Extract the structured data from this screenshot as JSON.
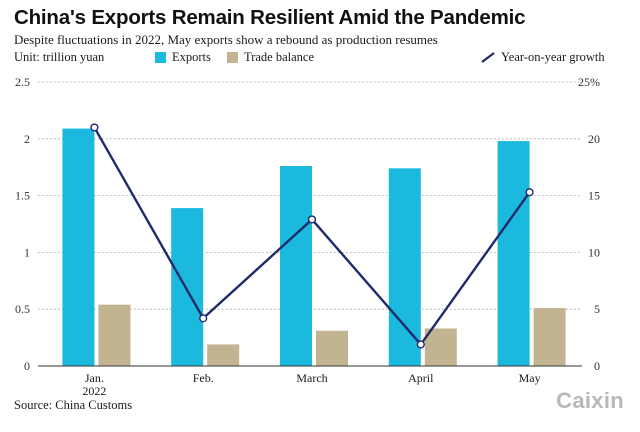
{
  "chart_data": {
    "type": "bar",
    "title": "China's Exports Remain Resilient Amid the Pandemic",
    "subtitle": "Despite fluctuations in 2022, May exports show a rebound as production resumes",
    "unit_label": "Unit: trillion yuan",
    "categories": [
      "Jan.",
      "Feb.",
      "March",
      "April",
      "May"
    ],
    "category_sublabels": [
      "2022",
      "",
      "",
      "",
      ""
    ],
    "series": [
      {
        "name": "Exports",
        "type": "bar",
        "axis": "left",
        "color": "#1ab9dd",
        "values": [
          2.09,
          1.39,
          1.76,
          1.74,
          1.98
        ]
      },
      {
        "name": "Trade balance",
        "type": "bar",
        "axis": "left",
        "color": "#c2b491",
        "values": [
          0.54,
          0.19,
          0.31,
          0.33,
          0.51
        ]
      },
      {
        "name": "Year-on-year growth",
        "type": "line",
        "axis": "right",
        "color": "#1f2a6b",
        "values": [
          21,
          4.2,
          12.9,
          1.9,
          15.3
        ]
      }
    ],
    "left_axis": {
      "min": 0,
      "max": 2.5,
      "ticks": [
        "0",
        "0.5",
        "1",
        "1.5",
        "2",
        "2.5"
      ]
    },
    "right_axis": {
      "min": 0,
      "max": 25,
      "ticks": [
        "0",
        "5",
        "10",
        "15",
        "20",
        "25%"
      ]
    },
    "source": "Source: China Customs",
    "brand": "Caixin"
  }
}
